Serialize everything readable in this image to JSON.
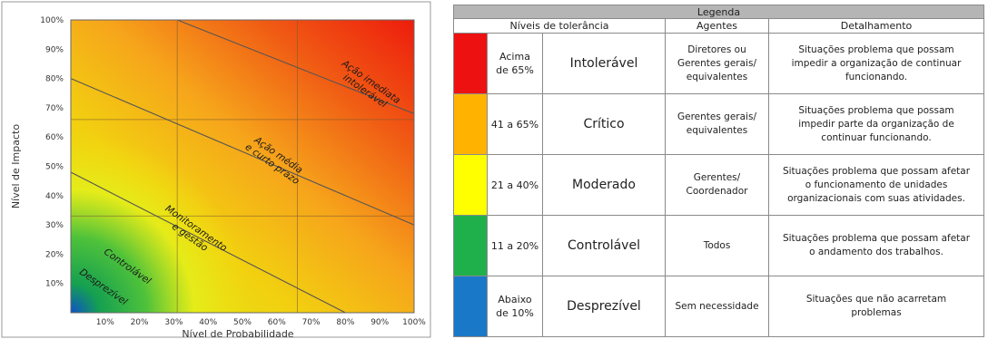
{
  "chart_data": {
    "type": "heatmap",
    "ylabel": "Nível de Impacto",
    "xlabel": "Nível de Probabilidade",
    "xlim": [
      0,
      100
    ],
    "ylim": [
      0,
      100
    ],
    "x_ticks": [
      "10%",
      "20%",
      "30%",
      "40%",
      "50%",
      "60%",
      "70%",
      "80%",
      "90%",
      "100%"
    ],
    "y_ticks": [
      "10%",
      "20%",
      "30%",
      "40%",
      "50%",
      "60%",
      "70%",
      "80%",
      "90%",
      "100%"
    ],
    "grid_x": [
      31,
      66
    ],
    "grid_y": [
      33,
      66
    ],
    "boundaries": [
      {
        "x0": 0,
        "y0": 80,
        "x1": 100,
        "y1": 30
      },
      {
        "x0": 0,
        "y0": 48,
        "x1": 80,
        "y1": 0
      },
      {
        "x0": 31,
        "y0": 100,
        "x1": 100,
        "y1": 68
      }
    ],
    "zones": [
      {
        "label": "Desprezível",
        "color": "#1f6fc4",
        "x": 9,
        "y": 8
      },
      {
        "label": "Controlável",
        "color": "#2aa84a",
        "x": 16,
        "y": 15
      },
      {
        "label": "Monitoramento\ne gestão",
        "color": "#f5f000",
        "x": 36,
        "y": 28
      },
      {
        "label": "Ação média\ne curto prazo",
        "color": "#f7a31c",
        "x": 60,
        "y": 53
      },
      {
        "label": "Ação imediata\nintolerável",
        "color": "#e8150e",
        "x": 87,
        "y": 78
      }
    ]
  },
  "legend": {
    "title": "Legenda",
    "headers": [
      "Níveis de tolerância",
      "Agentes",
      "Detalhamento"
    ],
    "rows": [
      {
        "color": "#ee1111",
        "range": "Acima\nde 65%",
        "level": "Intolerável",
        "agents": "Diretores ou\nGerentes gerais/\nequivalentes",
        "detail": "Situações problema que possam\nimpedir a organização de continuar\nfuncionando."
      },
      {
        "color": "#ffb300",
        "range": "41 a 65%",
        "level": "Crítico",
        "agents": "Gerentes gerais/\nequivalentes",
        "detail": "Situações problema que possam\nimpedir parte da organização de\ncontinuar funcionando."
      },
      {
        "color": "#ffff00",
        "range": "21 a 40%",
        "level": "Moderado",
        "agents": "Gerentes/\nCoordenador",
        "detail": "Situações problema que possam afetar\no funcionamento de unidades\norganizacionais com suas atividades."
      },
      {
        "color": "#1fb04c",
        "range": "11 a 20%",
        "level": "Controlável",
        "agents": "Todos",
        "detail": "Situações problema que possam afetar\no andamento dos trabalhos."
      },
      {
        "color": "#1a78c8",
        "range": "Abaixo\nde 10%",
        "level": "Desprezível",
        "agents": "Sem necessidade",
        "detail": "Situações que não acarretam\nproblemas"
      }
    ]
  }
}
